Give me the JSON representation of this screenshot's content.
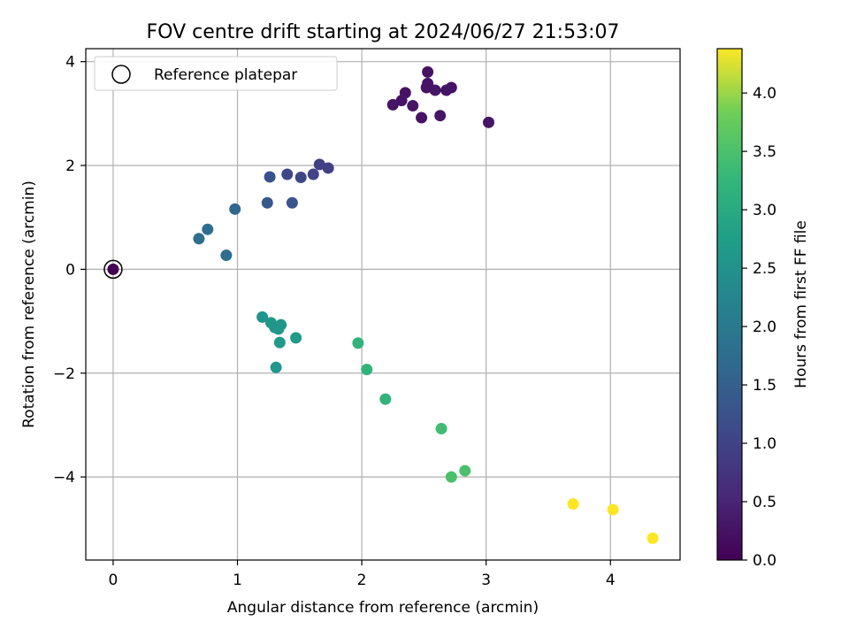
{
  "chart_data": {
    "type": "scatter",
    "title": "FOV centre drift starting at 2024/06/27 21:53:07",
    "xlabel": "Angular distance from reference (arcmin)",
    "ylabel": "Rotation from reference (arcmin)",
    "xlim": [
      -0.22,
      4.56
    ],
    "ylim": [
      -5.6,
      4.25
    ],
    "xticks": [
      0,
      1,
      2,
      3,
      4
    ],
    "yticks": [
      -4,
      -2,
      0,
      2,
      4
    ],
    "xtick_labels": [
      "0",
      "1",
      "2",
      "3",
      "4"
    ],
    "ytick_labels": [
      "−4",
      "−2",
      "0",
      "2",
      "4"
    ],
    "grid": true,
    "legend": {
      "placement": "upper-left",
      "entries": [
        "Reference platepar"
      ]
    },
    "reference_point": {
      "x": 0,
      "y": 0,
      "hours": 0.0
    },
    "colorbar": {
      "label": "Hours from first FF file",
      "colormap": "viridis",
      "range": [
        0,
        4.38
      ],
      "ticks": [
        0.0,
        0.5,
        1.0,
        1.5,
        2.0,
        2.5,
        3.0,
        3.5,
        4.0
      ],
      "tick_labels": [
        "0.0",
        "0.5",
        "1.0",
        "1.5",
        "2.0",
        "2.5",
        "3.0",
        "3.5",
        "4.0"
      ]
    },
    "points": [
      {
        "x": 0.0,
        "y": 0.0,
        "hours": 0.0
      },
      {
        "x": 2.53,
        "y": 3.8,
        "hours": 0.25
      },
      {
        "x": 2.35,
        "y": 3.4,
        "hours": 0.25
      },
      {
        "x": 2.53,
        "y": 3.58,
        "hours": 0.27
      },
      {
        "x": 2.52,
        "y": 3.5,
        "hours": 0.28
      },
      {
        "x": 2.59,
        "y": 3.45,
        "hours": 0.28
      },
      {
        "x": 2.68,
        "y": 3.45,
        "hours": 0.27
      },
      {
        "x": 2.72,
        "y": 3.5,
        "hours": 0.27
      },
      {
        "x": 2.25,
        "y": 3.17,
        "hours": 0.26
      },
      {
        "x": 2.32,
        "y": 3.25,
        "hours": 0.27
      },
      {
        "x": 2.41,
        "y": 3.15,
        "hours": 0.28
      },
      {
        "x": 2.48,
        "y": 2.92,
        "hours": 0.27
      },
      {
        "x": 2.63,
        "y": 2.96,
        "hours": 0.26
      },
      {
        "x": 3.02,
        "y": 2.83,
        "hours": 0.28
      },
      {
        "x": 1.66,
        "y": 2.02,
        "hours": 0.95
      },
      {
        "x": 1.73,
        "y": 1.95,
        "hours": 0.95
      },
      {
        "x": 1.4,
        "y": 1.83,
        "hours": 1.05
      },
      {
        "x": 1.51,
        "y": 1.77,
        "hours": 1.05
      },
      {
        "x": 1.61,
        "y": 1.83,
        "hours": 1.0
      },
      {
        "x": 1.26,
        "y": 1.78,
        "hours": 1.25
      },
      {
        "x": 1.24,
        "y": 1.28,
        "hours": 1.35
      },
      {
        "x": 1.44,
        "y": 1.28,
        "hours": 1.3
      },
      {
        "x": 0.98,
        "y": 1.16,
        "hours": 1.65
      },
      {
        "x": 0.76,
        "y": 0.77,
        "hours": 1.75
      },
      {
        "x": 0.69,
        "y": 0.59,
        "hours": 1.8
      },
      {
        "x": 0.91,
        "y": 0.27,
        "hours": 1.75
      },
      {
        "x": 1.2,
        "y": -0.92,
        "hours": 2.55
      },
      {
        "x": 1.27,
        "y": -1.03,
        "hours": 2.6
      },
      {
        "x": 1.3,
        "y": -1.12,
        "hours": 2.6
      },
      {
        "x": 1.33,
        "y": -1.15,
        "hours": 2.6
      },
      {
        "x": 1.35,
        "y": -1.07,
        "hours": 2.6
      },
      {
        "x": 1.34,
        "y": -1.41,
        "hours": 2.65
      },
      {
        "x": 1.47,
        "y": -1.32,
        "hours": 2.65
      },
      {
        "x": 1.31,
        "y": -1.89,
        "hours": 2.6
      },
      {
        "x": 1.97,
        "y": -1.42,
        "hours": 3.2
      },
      {
        "x": 2.04,
        "y": -1.93,
        "hours": 3.2
      },
      {
        "x": 2.19,
        "y": -2.5,
        "hours": 3.2
      },
      {
        "x": 2.64,
        "y": -3.07,
        "hours": 3.4
      },
      {
        "x": 2.72,
        "y": -4.0,
        "hours": 3.5
      },
      {
        "x": 2.83,
        "y": -3.88,
        "hours": 3.5
      },
      {
        "x": 3.7,
        "y": -4.52,
        "hours": 4.38
      },
      {
        "x": 4.02,
        "y": -4.63,
        "hours": 4.38
      },
      {
        "x": 4.34,
        "y": -5.18,
        "hours": 4.38
      }
    ]
  }
}
